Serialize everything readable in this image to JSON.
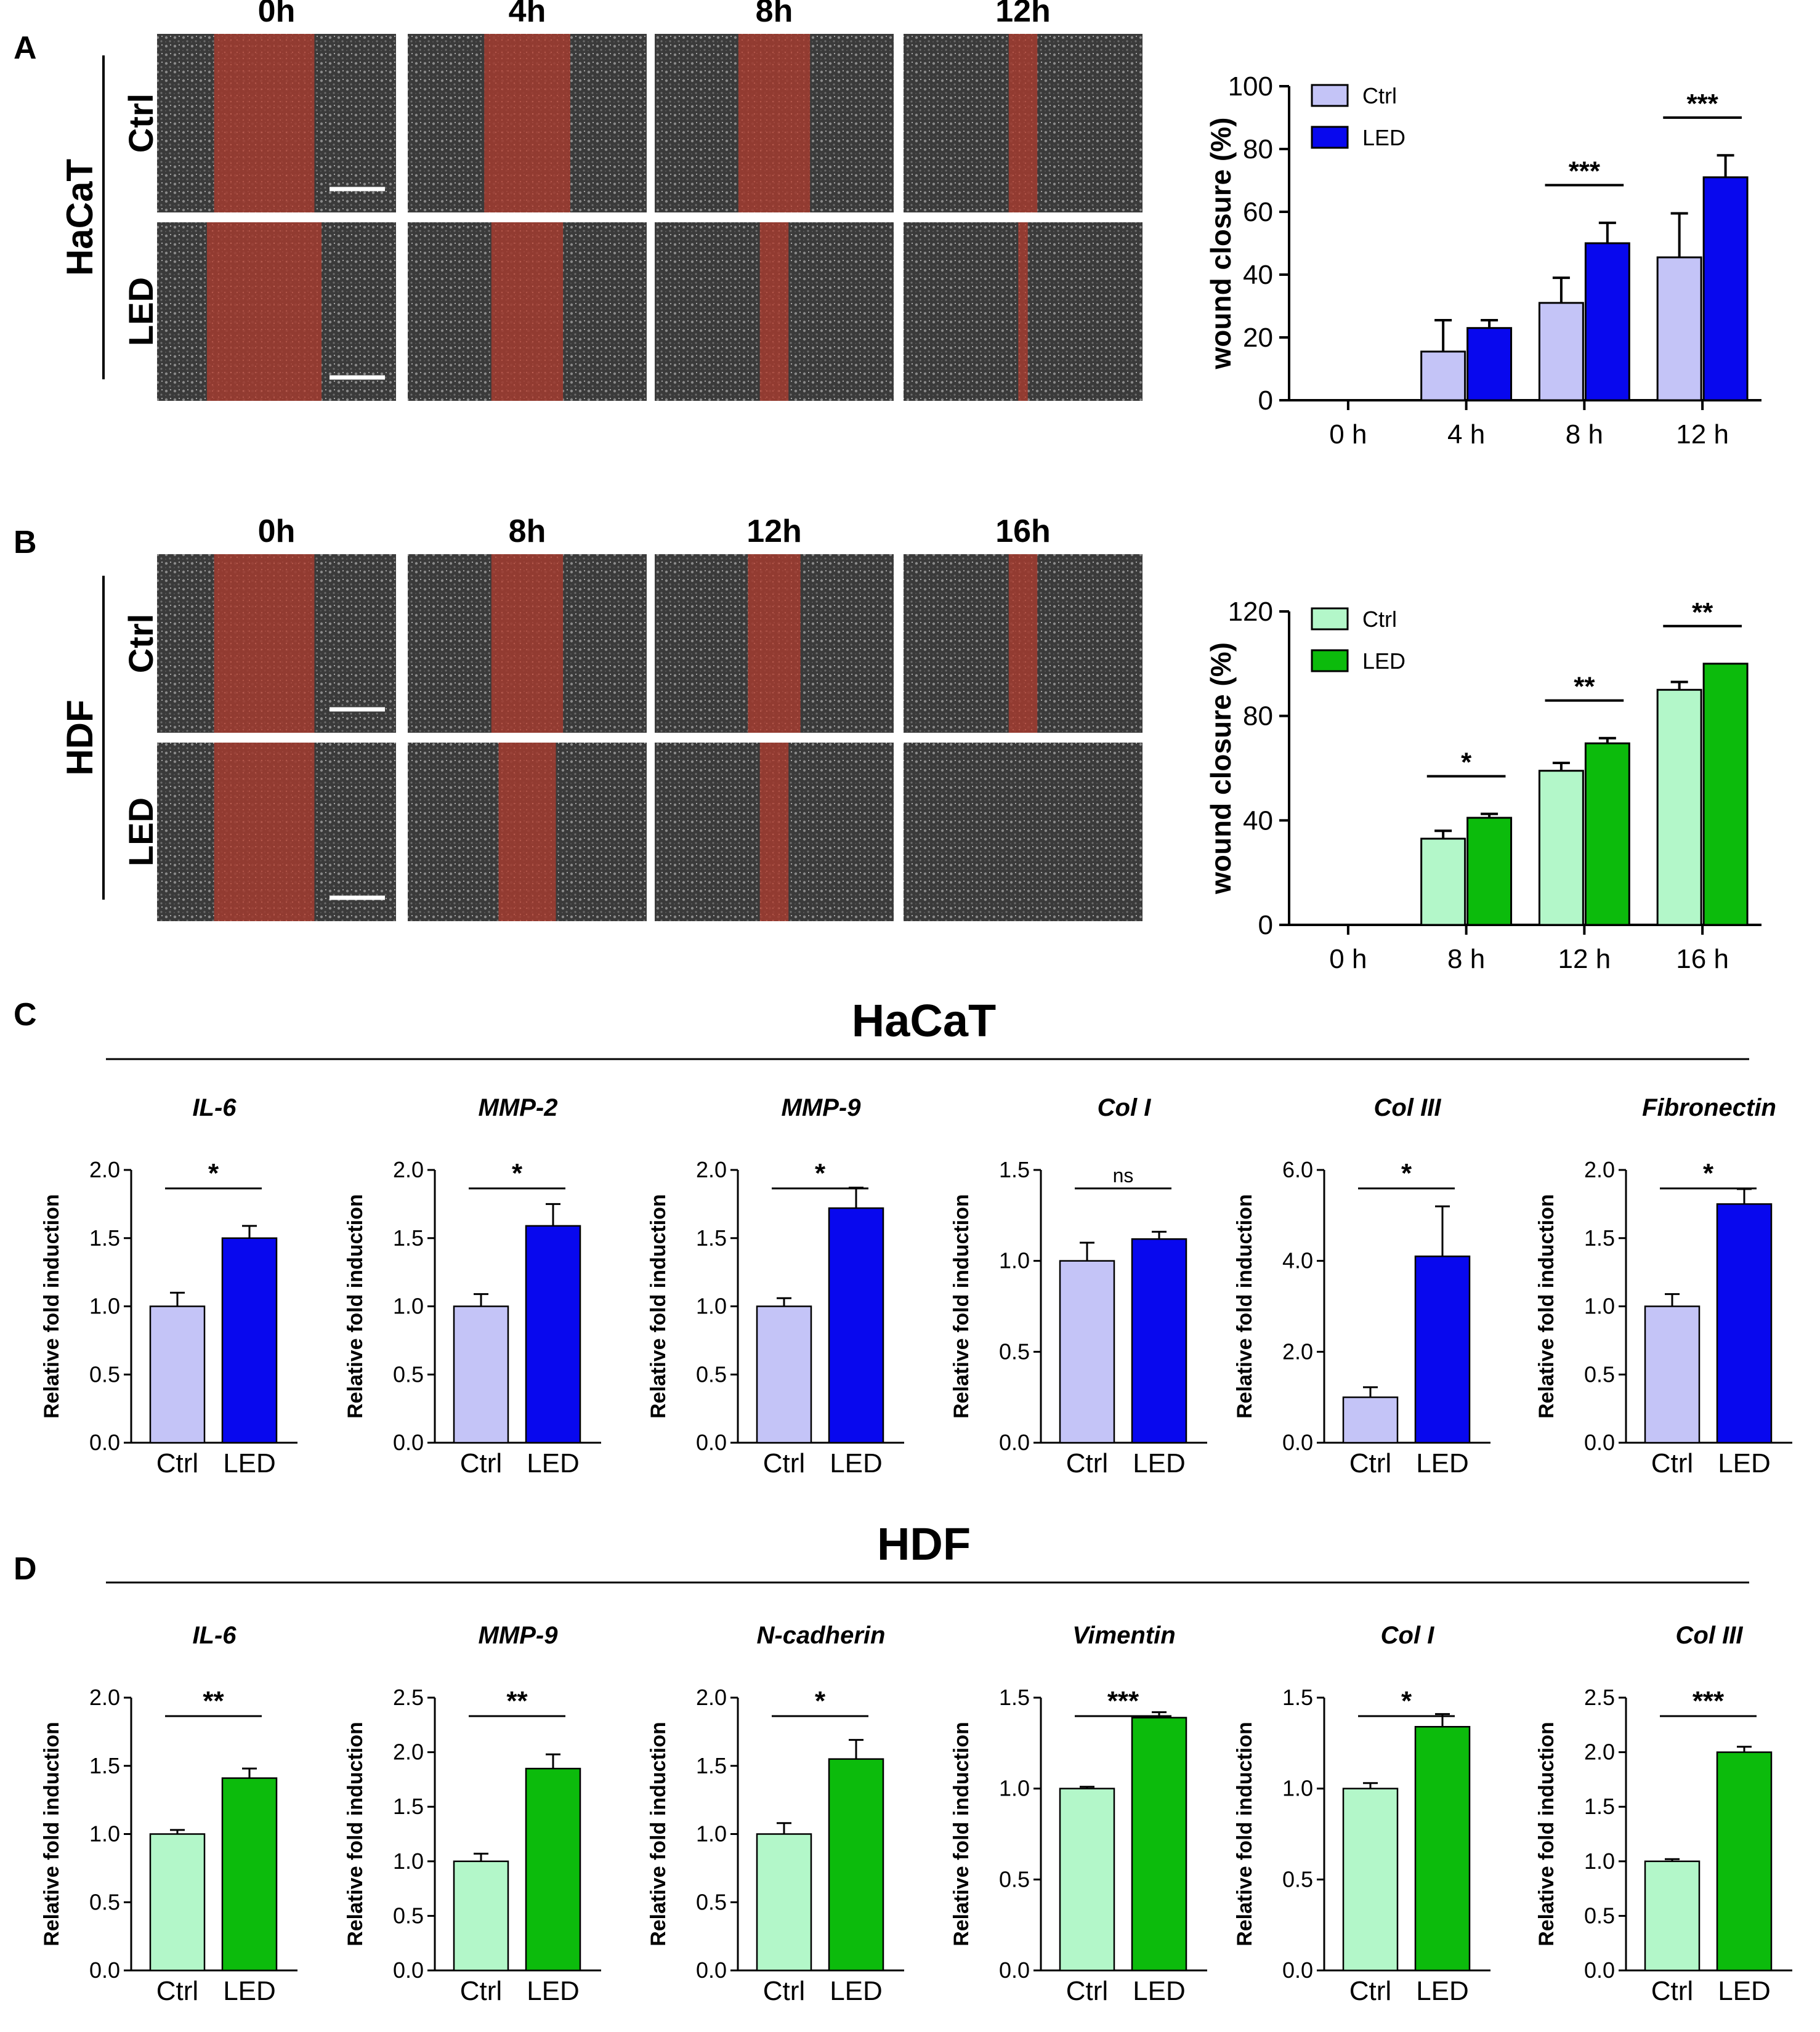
{
  "panels": {
    "a": "A",
    "b": "B",
    "c": "C",
    "d": "D"
  },
  "micrographs": {
    "a": {
      "cell_line": "HaCaT",
      "rows": [
        "Ctrl",
        "LED"
      ],
      "times": [
        "0h",
        "4h",
        "8h",
        "12h"
      ],
      "gap_fraction": [
        [
          0.42,
          0.36,
          0.3,
          0.12
        ],
        [
          0.48,
          0.3,
          0.12,
          0.04
        ]
      ]
    },
    "b": {
      "cell_line": "HDF",
      "rows": [
        "Ctrl",
        "LED"
      ],
      "times": [
        "0h",
        "8h",
        "12h",
        "16h"
      ],
      "gap_fraction": [
        [
          0.42,
          0.3,
          0.22,
          0.12
        ],
        [
          0.42,
          0.24,
          0.12,
          0.0
        ]
      ]
    }
  },
  "colors": {
    "hacat_ctrl": "#c4c4f7",
    "hacat_led": "#0808ee",
    "hdf_ctrl": "#b3f7c9",
    "hdf_led": "#0cbb0c",
    "wound_overlay": "#a02a1e",
    "cell_bg": "#3c3c3c"
  },
  "sections": {
    "c_title": "HaCaT",
    "d_title": "HDF"
  },
  "chart_data": [
    {
      "id": "A-wound",
      "type": "bar",
      "ylabel": "wound closure (%)",
      "categories": [
        "0 h",
        "4 h",
        "8 h",
        "12 h"
      ],
      "ylim": [
        0,
        100
      ],
      "yticks": [
        "0",
        "20",
        "40",
        "60",
        "80",
        "100"
      ],
      "series": [
        {
          "name": "Ctrl",
          "values": [
            0,
            15.5,
            31,
            45.5
          ],
          "errors": [
            0,
            10,
            8,
            14
          ]
        },
        {
          "name": "LED",
          "values": [
            0,
            23,
            50,
            71
          ],
          "errors": [
            0,
            2.5,
            6.5,
            7
          ]
        }
      ],
      "significance": [
        "",
        "",
        "***",
        "***"
      ]
    },
    {
      "id": "B-wound",
      "type": "bar",
      "ylabel": "wound closure (%)",
      "categories": [
        "0 h",
        "8 h",
        "12 h",
        "16 h"
      ],
      "ylim": [
        0,
        120
      ],
      "yticks": [
        "0",
        "40",
        "80",
        "120"
      ],
      "series": [
        {
          "name": "Ctrl",
          "values": [
            0,
            33,
            59,
            90
          ],
          "errors": [
            0,
            3,
            3,
            3
          ]
        },
        {
          "name": "LED",
          "values": [
            0,
            41,
            69.5,
            100
          ],
          "errors": [
            0,
            1.5,
            2,
            0
          ]
        }
      ],
      "significance": [
        "",
        "*",
        "**",
        "**"
      ]
    },
    {
      "id": "C1",
      "type": "bar",
      "title": "IL-6",
      "ylabel": "Relative fold induction",
      "categories": [
        "Ctrl",
        "LED"
      ],
      "values": [
        1.0,
        1.5
      ],
      "errors": [
        0.1,
        0.09
      ],
      "ylim": [
        0,
        2.0
      ],
      "yticks": [
        "0.0",
        "0.5",
        "1.0",
        "1.5",
        "2.0"
      ],
      "significance": "*"
    },
    {
      "id": "C2",
      "type": "bar",
      "title": "MMP-2",
      "ylabel": "Relative fold induction",
      "categories": [
        "Ctrl",
        "LED"
      ],
      "values": [
        1.0,
        1.59
      ],
      "errors": [
        0.09,
        0.16
      ],
      "ylim": [
        0,
        2.0
      ],
      "yticks": [
        "0.0",
        "0.5",
        "1.0",
        "1.5",
        "2.0"
      ],
      "significance": "*"
    },
    {
      "id": "C3",
      "type": "bar",
      "title": "MMP-9",
      "ylabel": "Relative fold induction",
      "categories": [
        "Ctrl",
        "LED"
      ],
      "values": [
        1.0,
        1.72
      ],
      "errors": [
        0.06,
        0.15
      ],
      "ylim": [
        0,
        2.0
      ],
      "yticks": [
        "0.0",
        "0.5",
        "1.0",
        "1.5",
        "2.0"
      ],
      "significance": "*"
    },
    {
      "id": "C4",
      "type": "bar",
      "title": "Col I",
      "ylabel": "Relative fold induction",
      "categories": [
        "Ctrl",
        "LED"
      ],
      "values": [
        1.0,
        1.12
      ],
      "errors": [
        0.1,
        0.04
      ],
      "ylim": [
        0,
        1.5
      ],
      "yticks": [
        "0.0",
        "0.5",
        "1.0",
        "1.5"
      ],
      "significance": "ns"
    },
    {
      "id": "C5",
      "type": "bar",
      "title": "Col III",
      "ylabel": "Relative fold induction",
      "categories": [
        "Ctrl",
        "LED"
      ],
      "values": [
        1.0,
        4.1
      ],
      "errors": [
        0.22,
        1.1
      ],
      "ylim": [
        0,
        6.0
      ],
      "yticks": [
        "0.0",
        "2.0",
        "4.0",
        "6.0"
      ],
      "significance": "*"
    },
    {
      "id": "C6",
      "type": "bar",
      "title": "Fibronectin",
      "ylabel": "Relative fold induction",
      "categories": [
        "Ctrl",
        "LED"
      ],
      "values": [
        1.0,
        1.75
      ],
      "errors": [
        0.09,
        0.11
      ],
      "ylim": [
        0,
        2.0
      ],
      "yticks": [
        "0.0",
        "0.5",
        "1.0",
        "1.5",
        "2.0"
      ],
      "significance": "*"
    },
    {
      "id": "D1",
      "type": "bar",
      "title": "IL-6",
      "ylabel": "Relative fold induction",
      "categories": [
        "Ctrl",
        "LED"
      ],
      "values": [
        1.0,
        1.41
      ],
      "errors": [
        0.03,
        0.07
      ],
      "ylim": [
        0,
        2.0
      ],
      "yticks": [
        "0.0",
        "0.5",
        "1.0",
        "1.5",
        "2.0"
      ],
      "significance": "**"
    },
    {
      "id": "D2",
      "type": "bar",
      "title": "MMP-9",
      "ylabel": "Relative fold induction",
      "categories": [
        "Ctrl",
        "LED"
      ],
      "values": [
        1.0,
        1.85
      ],
      "errors": [
        0.07,
        0.13
      ],
      "ylim": [
        0,
        2.5
      ],
      "yticks": [
        "0.0",
        "0.5",
        "1.0",
        "1.5",
        "2.0",
        "2.5"
      ],
      "significance": "**"
    },
    {
      "id": "D3",
      "type": "bar",
      "title": "N-cadherin",
      "ylabel": "Relative fold induction",
      "categories": [
        "Ctrl",
        "LED"
      ],
      "values": [
        1.0,
        1.55
      ],
      "errors": [
        0.08,
        0.14
      ],
      "ylim": [
        0,
        2.0
      ],
      "yticks": [
        "0.0",
        "0.5",
        "1.0",
        "1.5",
        "2.0"
      ],
      "significance": "*"
    },
    {
      "id": "D4",
      "type": "bar",
      "title": "Vimentin",
      "ylabel": "Relative fold induction",
      "categories": [
        "Ctrl",
        "LED"
      ],
      "values": [
        1.0,
        1.39
      ],
      "errors": [
        0.01,
        0.03
      ],
      "ylim": [
        0,
        1.5
      ],
      "yticks": [
        "0.0",
        "0.5",
        "1.0",
        "1.5"
      ],
      "significance": "***"
    },
    {
      "id": "D5",
      "type": "bar",
      "title": "Col I",
      "ylabel": "Relative fold induction",
      "categories": [
        "Ctrl",
        "LED"
      ],
      "values": [
        1.0,
        1.34
      ],
      "errors": [
        0.03,
        0.07
      ],
      "ylim": [
        0,
        1.5
      ],
      "yticks": [
        "0.0",
        "0.5",
        "1.0",
        "1.5"
      ],
      "significance": "*"
    },
    {
      "id": "D6",
      "type": "bar",
      "title": "Col III",
      "ylabel": "Relative fold induction",
      "categories": [
        "Ctrl",
        "LED"
      ],
      "values": [
        1.0,
        2.0
      ],
      "errors": [
        0.02,
        0.05
      ],
      "ylim": [
        0,
        2.5
      ],
      "yticks": [
        "0.0",
        "0.5",
        "1.0",
        "1.5",
        "2.0",
        "2.5"
      ],
      "significance": "***"
    }
  ]
}
